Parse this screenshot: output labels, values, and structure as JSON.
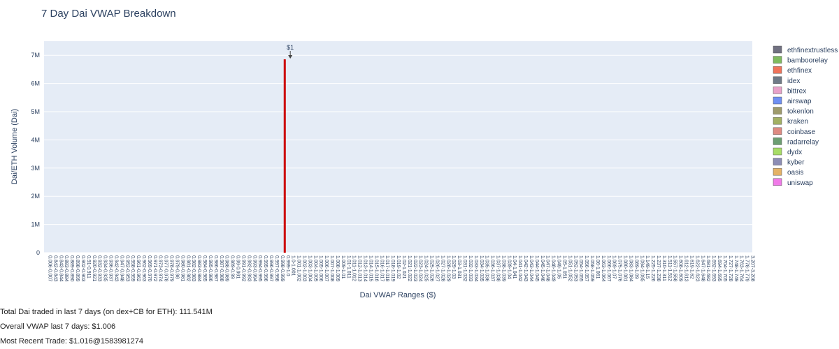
{
  "chart_data": {
    "type": "bar",
    "barmode": "stack",
    "title": "7 Day Dai VWAP Breakdown",
    "xlabel": "Dai VWAP Ranges ($)",
    "ylabel": "Dai/ETH Volume (Dai)",
    "ylim": [
      0,
      7500000
    ],
    "yticks": [
      0,
      1000000,
      2000000,
      3000000,
      4000000,
      5000000,
      6000000,
      7000000
    ],
    "ytick_labels": [
      "0",
      "1M",
      "2M",
      "3M",
      "4M",
      "5M",
      "6M",
      "7M"
    ],
    "grid": true,
    "legend_position": "right",
    "background": "#e5ecf6",
    "categories": [
      "0.006-0.007",
      "0.842-0.843",
      "0.843-0.844",
      "0.883-0.884",
      "0.889-0.890",
      "0.898-0.899",
      "0.902-0.903",
      "0.91-0.911",
      "0.920-0.921",
      "0.932-0.933",
      "0.934-0.935",
      "0.936-0.937",
      "0.942-0.943",
      "0.947-0.948",
      "0.952-0.953",
      "0.958-0.959",
      "0.961-0.962",
      "0.962-0.963",
      "0.969-0.970",
      "0.971-0.972",
      "0.973-0.974",
      "0.977-0.978",
      "0.978-0.979",
      "0.979-0.98",
      "0.980-0.981",
      "0.981-0.982",
      "0.982-0.983",
      "0.983-0.984",
      "0.984-0.985",
      "0.985-0.986",
      "0.986-0.987",
      "0.987-0.988",
      "0.988-0.989",
      "0.989-0.99",
      "0.99-0.991",
      "0.991-0.992",
      "0.992-0.993",
      "0.993-0.994",
      "0.994-0.995",
      "0.995-0.996",
      "0.996-0.997",
      "0.997-0.998",
      "0.998-0.999",
      "0.999-1.0",
      "1.0-1.001",
      "1.001-1.002",
      "1.002-1.003",
      "1.003-1.004",
      "1.004-1.005",
      "1.005-1.006",
      "1.006-1.007",
      "1.007-1.008",
      "1.008-1.009",
      "1.009-1.01",
      "1.01-1.011",
      "1.011-1.012",
      "1.012-1.013",
      "1.013-1.014",
      "1.014-1.015",
      "1.015-1.016",
      "1.016-1.017",
      "1.017-1.018",
      "1.018-1.019",
      "1.019-1.02",
      "1.02-1.021",
      "1.021-1.022",
      "1.022-1.023",
      "1.023-1.024",
      "1.024-1.025",
      "1.025-1.026",
      "1.026-1.027",
      "1.027-1.028",
      "1.028-1.029",
      "1.029-1.03",
      "1.03-1.031",
      "1.031-1.032",
      "1.032-1.033",
      "1.033-1.034",
      "1.034-1.035",
      "1.035-1.036",
      "1.036-1.037",
      "1.037-1.038",
      "1.038-1.039",
      "1.039-1.04",
      "1.04-1.041",
      "1.041-1.042",
      "1.042-1.043",
      "1.043-1.044",
      "1.044-1.045",
      "1.045-1.046",
      "1.047-1.048",
      "1.048-1.049",
      "1.049-1.05",
      "1.05-1.051",
      "1.051-1.052",
      "1.052-1.053",
      "1.054-1.055",
      "1.056-1.057",
      "1.058-1.059",
      "1.06-1.061",
      "1.063-1.064",
      "1.066-1.067",
      "1.069-1.07",
      "1.075-1.076",
      "1.080-1.081",
      "1.083-1.084",
      "1.089-1.09",
      "1.094-1.095",
      "1.149-1.15",
      "1.225-1.226",
      "1.237-1.238",
      "1.310-1.311",
      "1.511-1.512",
      "1.557-1.558",
      "1.608-1.609",
      "1.612-1.613",
      "1.619-1.62",
      "1.622-1.623",
      "1.647-1.648",
      "1.681-1.682",
      "1.692-1.693",
      "1.694-1.695",
      "1.704-1.705",
      "1.727-1.728",
      "1.748-1.749",
      "1.763-1.764",
      "1.778-1.779",
      "3.207-3.208"
    ],
    "series": [
      {
        "name": "ethfinextrustless",
        "color": "#717181"
      },
      {
        "name": "bamboorelay",
        "color": "#7fbb5e"
      },
      {
        "name": "ethfinex",
        "color": "#f0735a"
      },
      {
        "name": "idex",
        "color": "#6f7a87"
      },
      {
        "name": "bittrex",
        "color": "#e8a1c9"
      },
      {
        "name": "airswap",
        "color": "#6f8ff2"
      },
      {
        "name": "tokenlon",
        "color": "#9e9b6c"
      },
      {
        "name": "kraken",
        "color": "#a2b063"
      },
      {
        "name": "coinbase",
        "color": "#de8a82"
      },
      {
        "name": "radarrelay",
        "color": "#6c9e72"
      },
      {
        "name": "dydx",
        "color": "#a7dc66"
      },
      {
        "name": "kyber",
        "color": "#8c8db5"
      },
      {
        "name": "oasis",
        "color": "#e4b266"
      },
      {
        "name": "uniswap",
        "color": "#f07ae8"
      }
    ],
    "annotation": {
      "text": "$1",
      "x": "1.0-1.001"
    },
    "reference_line": {
      "x": "0.999-1.0",
      "color": "#cc0000"
    }
  },
  "stats": {
    "total": "Total Dai traded in last 7 days (on dex+CB for ETH): 111.541M",
    "vwap": "Overall VWAP last 7 days: $1.006",
    "recent": "Most Recent Trade: $1.016@1583981274"
  }
}
